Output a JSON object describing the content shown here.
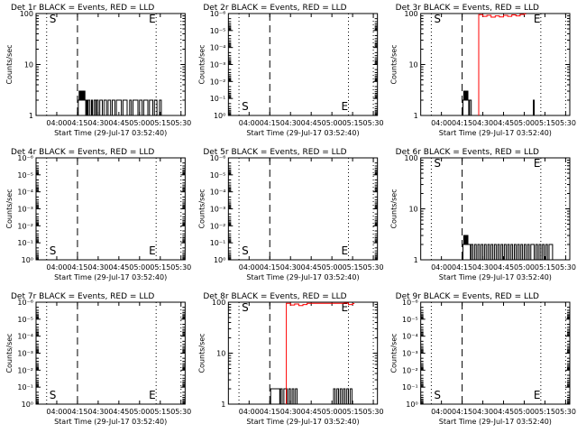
{
  "x_axis_label": "Start Time (29-Jul-17 03:52:40)",
  "y_axis_label": "Counts/sec",
  "colors": {
    "events": "#000000",
    "lld": "#ff0000",
    "background": "#ffffff"
  },
  "chart_data": [
    {
      "type": "line",
      "title": "Det 1r BLACK = Events, RED = LLD",
      "x_ticks": [
        "04:00",
        "04:15",
        "04:30",
        "04:45",
        "05:00",
        "05:15",
        "05:30"
      ],
      "y_scale": "log",
      "ylim": [
        1,
        100
      ],
      "y_ticks": [
        "1",
        "10",
        "100"
      ],
      "markers": [
        {
          "label": "S",
          "pos": "start"
        },
        {
          "label": "E",
          "pos": "end"
        }
      ],
      "series": [
        {
          "color": "#000000",
          "points": [
            [
              4.26,
              2
            ],
            [
              4.27,
              3
            ],
            [
              4.28,
              2
            ],
            [
              4.29,
              3
            ],
            [
              4.3,
              2
            ],
            [
              4.31,
              3
            ],
            [
              4.32,
              2
            ],
            [
              4.33,
              3
            ],
            [
              4.34,
              2
            ],
            [
              4.35,
              1
            ],
            [
              4.36,
              2
            ],
            [
              4.37,
              1
            ],
            [
              4.38,
              2
            ],
            [
              4.4,
              1
            ],
            [
              4.42,
              2
            ],
            [
              4.43,
              1
            ],
            [
              4.45,
              2
            ],
            [
              4.47,
              1
            ],
            [
              4.48,
              2
            ],
            [
              4.5,
              1
            ],
            [
              4.52,
              2
            ],
            [
              4.55,
              1
            ],
            [
              4.57,
              2
            ],
            [
              4.6,
              1
            ],
            [
              4.62,
              2
            ],
            [
              4.65,
              1
            ],
            [
              4.67,
              2
            ],
            [
              4.7,
              1
            ],
            [
              4.72,
              2
            ],
            [
              4.74,
              2
            ],
            [
              4.76,
              2
            ],
            [
              4.78,
              1
            ],
            [
              4.8,
              2
            ],
            [
              4.83,
              2
            ],
            [
              4.85,
              1
            ],
            [
              4.88,
              2
            ],
            [
              4.9,
              1
            ],
            [
              4.92,
              2
            ],
            [
              4.95,
              2
            ],
            [
              4.98,
              1
            ],
            [
              5.0,
              2
            ],
            [
              5.03,
              1
            ],
            [
              5.05,
              2
            ],
            [
              5.08,
              2
            ],
            [
              5.1,
              1
            ],
            [
              5.12,
              2
            ],
            [
              5.14,
              2
            ],
            [
              5.16,
              1
            ],
            [
              5.18,
              2
            ],
            [
              5.21,
              1
            ],
            [
              5.24,
              2
            ]
          ]
        }
      ]
    },
    {
      "type": "line",
      "title": "Det 2r BLACK = Events, RED = LLD",
      "x_ticks": [
        "04:00",
        "04:15",
        "04:30",
        "04:45",
        "05:00",
        "05:15",
        "05:30"
      ],
      "y_scale": "log",
      "ylim": [
        1,
        1e-06
      ],
      "y_ticks": [
        "10⁰",
        "10⁻¹",
        "10⁻²",
        "10⁻³",
        "10⁻⁴",
        "10⁻⁵",
        "10⁻⁶"
      ],
      "markers": [
        {
          "label": "S",
          "pos": "start"
        },
        {
          "label": "E",
          "pos": "end"
        }
      ],
      "series": []
    },
    {
      "type": "line",
      "title": "Det 3r BLACK = Events, RED = LLD",
      "x_ticks": [
        "04:00",
        "04:15",
        "04:30",
        "04:45",
        "05:00",
        "05:15",
        "05:30"
      ],
      "y_scale": "log",
      "ylim": [
        1,
        100
      ],
      "y_ticks": [
        "1",
        "10",
        "100"
      ],
      "markers": [
        {
          "label": "S",
          "pos": "start"
        },
        {
          "label": "E",
          "pos": "end"
        }
      ],
      "series": [
        {
          "color": "#000000",
          "points": [
            [
              4.26,
              2
            ],
            [
              4.27,
              3
            ],
            [
              4.28,
              2
            ],
            [
              4.29,
              3
            ],
            [
              4.3,
              2
            ],
            [
              4.31,
              3
            ],
            [
              4.32,
              2
            ],
            [
              4.33,
              1
            ],
            [
              4.34,
              2
            ],
            [
              4.36,
              1
            ],
            [
              5.1,
              1
            ],
            [
              5.11,
              2
            ],
            [
              5.12,
              1
            ]
          ]
        },
        {
          "color": "#ff0000",
          "points": [
            [
              4.45,
              95
            ],
            [
              4.5,
              88
            ],
            [
              4.55,
              92
            ],
            [
              4.6,
              85
            ],
            [
              4.65,
              90
            ],
            [
              4.7,
              86
            ],
            [
              4.75,
              92
            ],
            [
              4.8,
              88
            ],
            [
              4.85,
              94
            ],
            [
              4.9,
              90
            ],
            [
              4.95,
              96
            ],
            [
              5.0,
              98
            ]
          ]
        }
      ]
    },
    {
      "type": "line",
      "title": "Det 4r BLACK = Events, RED = LLD",
      "x_ticks": [
        "04:00",
        "04:15",
        "04:30",
        "04:45",
        "05:00",
        "05:15",
        "05:30"
      ],
      "y_scale": "log",
      "ylim": [
        1,
        1e-06
      ],
      "y_ticks": [
        "10⁰",
        "10⁻¹",
        "10⁻²",
        "10⁻³",
        "10⁻⁴",
        "10⁻⁵",
        "10⁻⁶"
      ],
      "markers": [
        {
          "label": "S",
          "pos": "start"
        },
        {
          "label": "E",
          "pos": "end"
        }
      ],
      "series": []
    },
    {
      "type": "line",
      "title": "Det 5r BLACK = Events, RED = LLD",
      "x_ticks": [
        "04:00",
        "04:15",
        "04:30",
        "04:45",
        "05:00",
        "05:15",
        "05:30"
      ],
      "y_scale": "log",
      "ylim": [
        1,
        1e-06
      ],
      "y_ticks": [
        "10⁰",
        "10⁻¹",
        "10⁻²",
        "10⁻³",
        "10⁻⁴",
        "10⁻⁵",
        "10⁻⁶"
      ],
      "markers": [
        {
          "label": "S",
          "pos": "start"
        },
        {
          "label": "E",
          "pos": "end"
        }
      ],
      "series": []
    },
    {
      "type": "line",
      "title": "Det 6r BLACK = Events, RED = LLD",
      "x_ticks": [
        "04:00",
        "04:15",
        "04:30",
        "04:45",
        "05:00",
        "05:15",
        "05:30"
      ],
      "y_scale": "log",
      "ylim": [
        1,
        100
      ],
      "y_ticks": [
        "1",
        "10",
        "100"
      ],
      "markers": [
        {
          "label": "S",
          "pos": "start"
        },
        {
          "label": "E",
          "pos": "end"
        }
      ],
      "series": [
        {
          "color": "#000000",
          "points": [
            [
              4.26,
              2
            ],
            [
              4.27,
              3
            ],
            [
              4.28,
              2
            ],
            [
              4.29,
              3
            ],
            [
              4.3,
              2
            ],
            [
              4.31,
              3
            ],
            [
              4.32,
              2
            ],
            [
              4.33,
              2
            ],
            [
              4.35,
              1
            ],
            [
              4.36,
              2
            ],
            [
              4.38,
              1
            ],
            [
              4.4,
              2
            ],
            [
              4.42,
              1
            ],
            [
              4.44,
              2
            ],
            [
              4.46,
              1
            ],
            [
              4.48,
              2
            ],
            [
              4.5,
              1
            ],
            [
              4.52,
              2
            ],
            [
              4.54,
              1
            ],
            [
              4.56,
              2
            ],
            [
              4.58,
              1
            ],
            [
              4.6,
              2
            ],
            [
              4.62,
              1
            ],
            [
              4.64,
              2
            ],
            [
              4.66,
              1
            ],
            [
              4.68,
              2
            ],
            [
              4.7,
              1
            ],
            [
              4.72,
              2
            ],
            [
              4.74,
              1
            ],
            [
              4.76,
              2
            ],
            [
              4.78,
              1
            ],
            [
              4.8,
              2
            ],
            [
              4.82,
              1
            ],
            [
              4.84,
              2
            ],
            [
              4.86,
              1
            ],
            [
              4.88,
              2
            ],
            [
              4.9,
              1
            ],
            [
              4.92,
              2
            ],
            [
              4.94,
              1
            ],
            [
              4.96,
              2
            ],
            [
              4.98,
              1
            ],
            [
              5.0,
              2
            ],
            [
              5.02,
              1
            ],
            [
              5.04,
              2
            ],
            [
              5.06,
              1
            ],
            [
              5.08,
              2
            ],
            [
              5.1,
              2
            ],
            [
              5.12,
              1
            ],
            [
              5.14,
              2
            ],
            [
              5.16,
              1
            ],
            [
              5.18,
              2
            ],
            [
              5.2,
              1
            ],
            [
              5.22,
              2
            ],
            [
              5.24,
              1
            ],
            [
              5.26,
              2
            ],
            [
              5.28,
              1
            ],
            [
              5.3,
              2
            ],
            [
              5.32,
              2
            ]
          ]
        }
      ]
    },
    {
      "type": "line",
      "title": "Det 7r BLACK = Events, RED = LLD",
      "x_ticks": [
        "04:00",
        "04:15",
        "04:30",
        "04:45",
        "05:00",
        "05:15",
        "05:30"
      ],
      "y_scale": "log",
      "ylim": [
        1,
        1e-06
      ],
      "y_ticks": [
        "10⁰",
        "10⁻¹",
        "10⁻²",
        "10⁻³",
        "10⁻⁴",
        "10⁻⁵",
        "10⁻⁶"
      ],
      "markers": [
        {
          "label": "S",
          "pos": "start"
        },
        {
          "label": "E",
          "pos": "end"
        }
      ],
      "series": []
    },
    {
      "type": "line",
      "title": "Det 8r BLACK = Events, RED = LLD",
      "x_ticks": [
        "04:00",
        "04:15",
        "04:30",
        "04:45",
        "05:00",
        "05:15",
        "05:30"
      ],
      "y_scale": "log",
      "ylim": [
        1,
        100
      ],
      "y_ticks": [
        "1",
        "10",
        "100"
      ],
      "markers": [
        {
          "label": "S",
          "pos": "start"
        },
        {
          "label": "E",
          "pos": "end"
        }
      ],
      "series": [
        {
          "color": "#000000",
          "points": [
            [
              4.26,
              2
            ],
            [
              4.27,
              2
            ],
            [
              4.29,
              2
            ],
            [
              4.31,
              2
            ],
            [
              4.33,
              2
            ],
            [
              4.35,
              2
            ],
            [
              4.37,
              1
            ],
            [
              4.38,
              2
            ],
            [
              4.4,
              1
            ],
            [
              4.42,
              2
            ],
            [
              4.44,
              2
            ],
            [
              4.46,
              1
            ],
            [
              4.48,
              2
            ],
            [
              4.5,
              1
            ],
            [
              4.52,
              2
            ],
            [
              4.54,
              1
            ],
            [
              4.56,
              2
            ],
            [
              4.58,
              1
            ],
            [
              5.0,
              1
            ],
            [
              5.02,
              2
            ],
            [
              5.04,
              1
            ],
            [
              5.06,
              2
            ],
            [
              5.08,
              1
            ],
            [
              5.1,
              2
            ],
            [
              5.12,
              1
            ],
            [
              5.14,
              2
            ],
            [
              5.16,
              1
            ],
            [
              5.18,
              2
            ],
            [
              5.2,
              1
            ],
            [
              5.22,
              2
            ]
          ]
        },
        {
          "color": "#ff0000",
          "points": [
            [
              4.45,
              95
            ],
            [
              4.5,
              88
            ],
            [
              4.55,
              92
            ],
            [
              4.6,
              86
            ],
            [
              4.65,
              90
            ],
            [
              4.7,
              95
            ],
            [
              5.15,
              96
            ],
            [
              5.2,
              90
            ],
            [
              5.25,
              94
            ]
          ]
        }
      ]
    },
    {
      "type": "line",
      "title": "Det 9r BLACK = Events, RED = LLD",
      "x_ticks": [
        "04:00",
        "04:15",
        "04:30",
        "04:45",
        "05:00",
        "05:15",
        "05:30"
      ],
      "y_scale": "log",
      "ylim": [
        1,
        1e-06
      ],
      "y_ticks": [
        "10⁰",
        "10⁻¹",
        "10⁻²",
        "10⁻³",
        "10⁻⁴",
        "10⁻⁵",
        "10⁻⁶"
      ],
      "markers": [
        {
          "label": "S",
          "pos": "start"
        },
        {
          "label": "E",
          "pos": "end"
        }
      ],
      "series": []
    }
  ]
}
